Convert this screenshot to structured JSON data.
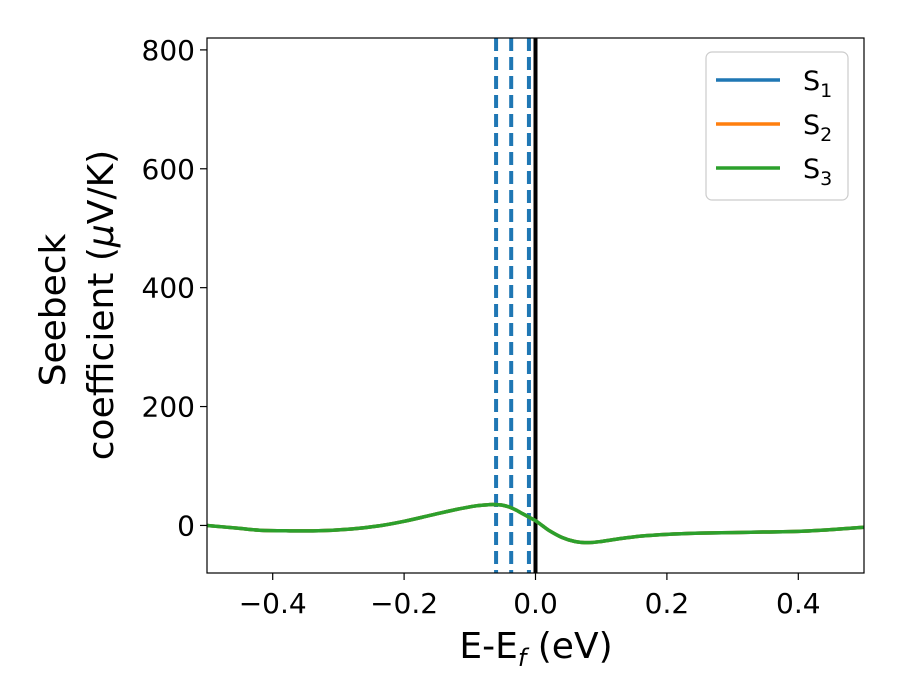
{
  "chart_data": {
    "type": "line",
    "xlabel": {
      "base": "E-E",
      "sub": "f",
      "unit": " (eV)"
    },
    "ylabel": {
      "line1": "Seebeck",
      "line2_prefix": "coefficient  (",
      "mu": "μ",
      "line2_suffix": "V/K)"
    },
    "xlim": [
      -0.5,
      0.5
    ],
    "ylim": [
      -80,
      820
    ],
    "x_ticks": [
      -0.4,
      -0.2,
      0.0,
      0.2,
      0.4
    ],
    "x_tick_labels": [
      "−0.4",
      "−0.2",
      "0.0",
      "0.2",
      "0.4"
    ],
    "y_ticks": [
      0,
      200,
      400,
      600,
      800
    ],
    "y_tick_labels": [
      "0",
      "200",
      "400",
      "600",
      "800"
    ],
    "grid": false,
    "legend_position": "top-right",
    "x": [
      -0.5,
      -0.45,
      -0.42,
      -0.38,
      -0.33,
      -0.28,
      -0.24,
      -0.2,
      -0.16,
      -0.12,
      -0.09,
      -0.07,
      -0.06,
      -0.05,
      -0.04,
      -0.03,
      -0.02,
      -0.01,
      0.0,
      0.01,
      0.02,
      0.04,
      0.06,
      0.08,
      0.1,
      0.13,
      0.16,
      0.2,
      0.25,
      0.3,
      0.35,
      0.4,
      0.45,
      0.5
    ],
    "series": [
      {
        "name_base": "S",
        "name_sub": "1",
        "color": "#1f77b4",
        "values": [
          0,
          -5,
          -8,
          -9,
          -9,
          -6,
          -1,
          7,
          17,
          27,
          33,
          35,
          35,
          34,
          31,
          26,
          20,
          14,
          8,
          0,
          -8,
          -20,
          -27,
          -29,
          -27,
          -22,
          -18,
          -15,
          -13,
          -12,
          -11,
          -10,
          -7,
          -3
        ]
      },
      {
        "name_base": "S",
        "name_sub": "2",
        "color": "#ff7f0e",
        "values": [
          0,
          -5,
          -8,
          -9,
          -9,
          -6,
          -1,
          7,
          17,
          27,
          33,
          35,
          35,
          34,
          31,
          26,
          20,
          14,
          8,
          0,
          -8,
          -20,
          -27,
          -29,
          -27,
          -22,
          -18,
          -15,
          -13,
          -12,
          -11,
          -10,
          -7,
          -3
        ]
      },
      {
        "name_base": "S",
        "name_sub": "3",
        "color": "#2ca02c",
        "values": [
          0,
          -5,
          -8,
          -9,
          -9,
          -6,
          -1,
          7,
          17,
          27,
          33,
          35,
          35,
          34,
          31,
          26,
          20,
          14,
          8,
          0,
          -8,
          -20,
          -27,
          -29,
          -27,
          -22,
          -18,
          -15,
          -13,
          -12,
          -11,
          -10,
          -7,
          -3
        ]
      }
    ],
    "dashed_vlines": [
      -0.06,
      -0.037,
      -0.01
    ],
    "dashed_color": "#1f77b4",
    "solid_vline": 0.0,
    "solid_color": "#000000"
  }
}
